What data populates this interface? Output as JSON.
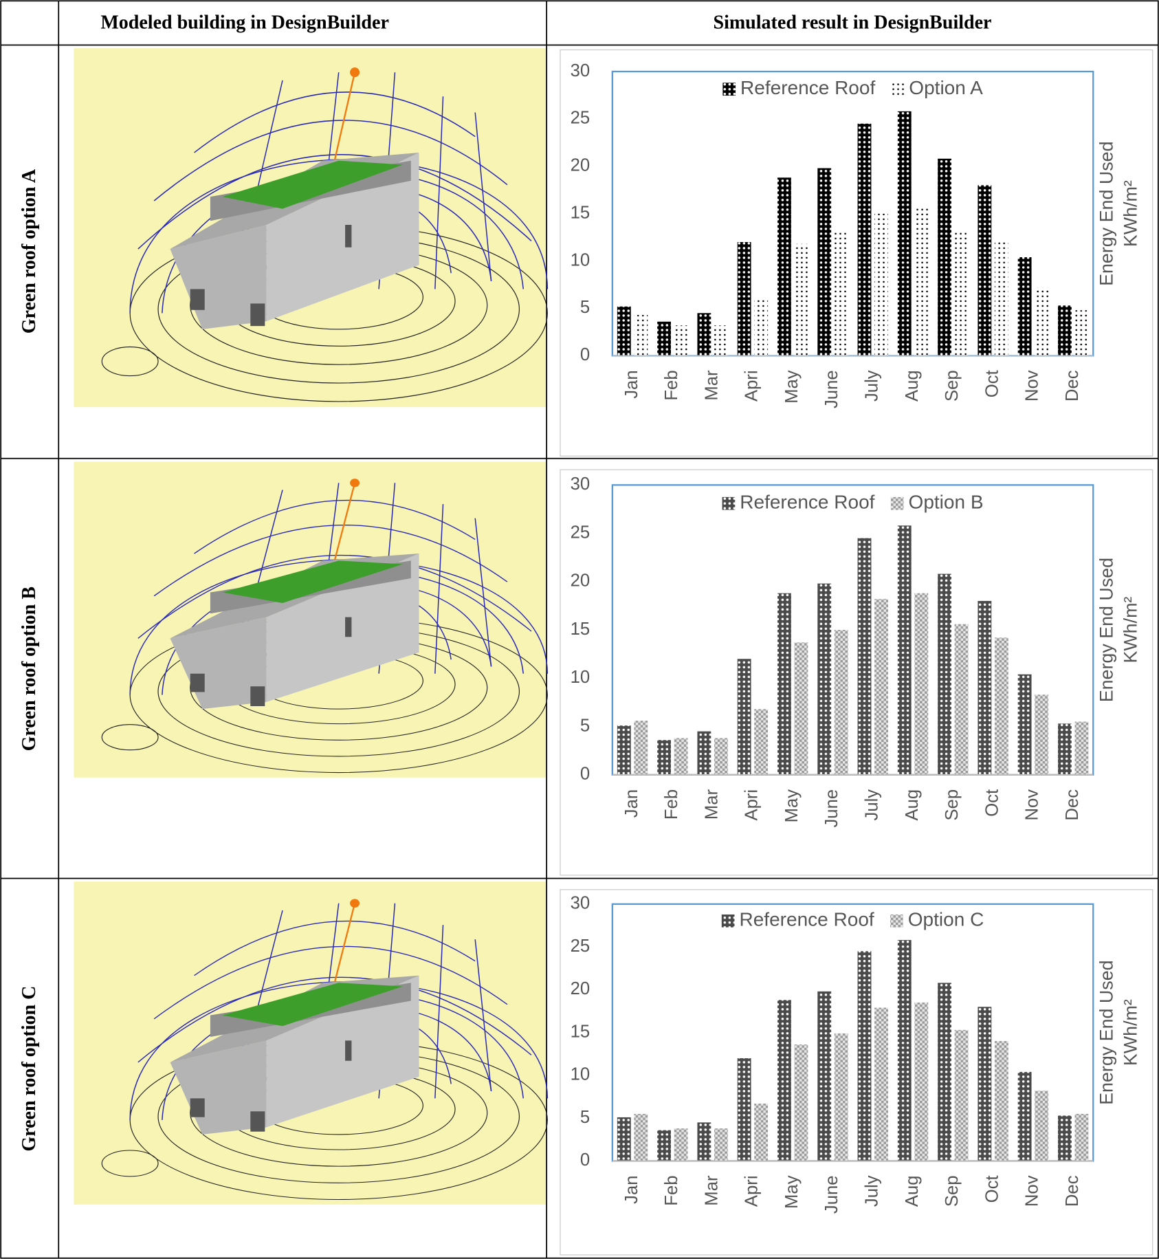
{
  "table": {
    "headers": [
      "Modeled building in DesignBuilder",
      "Simulated result in DesignBuilder"
    ],
    "rows": [
      "Green roof option A",
      "Green roof option B",
      "Green roof option C"
    ]
  },
  "chart_data": [
    {
      "type": "bar",
      "categories": [
        "Jan",
        "Feb",
        "Mar",
        "Apri",
        "May",
        "June",
        "July",
        "Aug",
        "Sep",
        "Oct",
        "Nov",
        "Dec"
      ],
      "series": [
        {
          "name": "Reference Roof",
          "color": "#000000",
          "pattern": "light-dots",
          "values": [
            5.2,
            3.6,
            4.5,
            12,
            18.8,
            19.8,
            24.5,
            25.8,
            20.8,
            18,
            10.4,
            5.3
          ]
        },
        {
          "name": "Option A",
          "color": "#ffffff",
          "pattern": "dark-dots",
          "values": [
            4.3,
            3.2,
            3.2,
            6,
            11.8,
            13,
            15,
            15.7,
            13.1,
            12.2,
            7.2,
            4.8
          ]
        }
      ],
      "ylabel": [
        "Energy End Used",
        "KWh/m²"
      ],
      "ylim": [
        0,
        30
      ],
      "yticks": [
        0,
        5,
        10,
        15,
        20,
        25,
        30
      ],
      "legend": "top"
    },
    {
      "type": "bar",
      "categories": [
        "Jan",
        "Feb",
        "Mar",
        "Apri",
        "May",
        "June",
        "July",
        "Aug",
        "Sep",
        "Oct",
        "Nov",
        "Dec"
      ],
      "series": [
        {
          "name": "Reference Roof",
          "color": "#4a4a4a",
          "pattern": "light-dots",
          "values": [
            5.1,
            3.6,
            4.5,
            12,
            18.8,
            19.8,
            24.5,
            25.8,
            20.8,
            18,
            10.4,
            5.3
          ]
        },
        {
          "name": "Option B",
          "color": "#9a9a9a",
          "pattern": "checker",
          "values": [
            5.6,
            3.8,
            3.8,
            6.8,
            13.7,
            15,
            18.2,
            18.8,
            15.6,
            14.2,
            8.3,
            5.5
          ]
        }
      ],
      "ylabel": [
        "Energy End Used",
        "KWh/m²"
      ],
      "ylim": [
        0,
        30
      ],
      "yticks": [
        0,
        5,
        10,
        15,
        20,
        25,
        30
      ],
      "legend": "top"
    },
    {
      "type": "bar",
      "categories": [
        "Jan",
        "Feb",
        "Mar",
        "Apri",
        "May",
        "June",
        "July",
        "Aug",
        "Sep",
        "Oct",
        "Nov",
        "Dec"
      ],
      "series": [
        {
          "name": "Reference Roof",
          "color": "#4a4a4a",
          "pattern": "light-dots",
          "values": [
            5.1,
            3.6,
            4.5,
            12,
            18.8,
            19.8,
            24.5,
            25.8,
            20.8,
            18,
            10.4,
            5.3
          ]
        },
        {
          "name": "Option C",
          "color": "#9a9a9a",
          "pattern": "checker",
          "values": [
            5.5,
            3.8,
            3.8,
            6.7,
            13.6,
            14.9,
            17.9,
            18.5,
            15.3,
            14,
            8.2,
            5.5
          ]
        }
      ],
      "ylabel": [
        "Energy End Used",
        "KWh/m²"
      ],
      "ylim": [
        0,
        30
      ],
      "yticks": [
        0,
        5,
        10,
        15,
        20,
        25,
        30
      ],
      "legend": "top"
    }
  ]
}
